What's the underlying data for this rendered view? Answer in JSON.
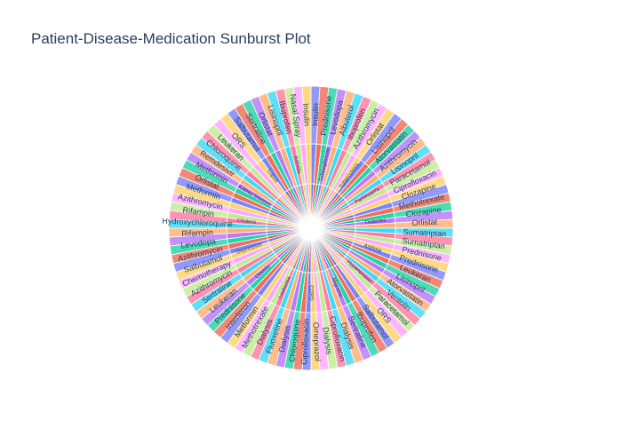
{
  "chart_data": {
    "type": "sunburst",
    "title": "Patient-Disease-Medication Sunburst Plot",
    "levels": [
      "Patient",
      "Disease",
      "Medication"
    ],
    "segment_count": 100,
    "inner_labels_unreadable": true,
    "visible_disease_labels": [
      "Schizophrenia",
      "Tuberculosis",
      "Parkinson's",
      "Diabetes",
      "Asthma",
      "Hypertension",
      "Migraine",
      "COPD",
      "Leukemia",
      "Obesity",
      "Depression",
      "Cholera",
      "Kidney Disease",
      "Lupus",
      "Arthritis"
    ],
    "visible_medication_labels": [
      "Insulin",
      "Prednisone",
      "Levodopa",
      "Albuterol",
      "Ibuprofen",
      "Azithromycin",
      "Orlistat",
      "Lisinopril",
      "Atorvastatin",
      "Azithromycin",
      "Lisinopril",
      "Paracetamol",
      "Ciprofloxacin",
      "Clozapine",
      "Methotrexate",
      "Clozapine",
      "Orlistat",
      "Sumatriptan",
      "Sumatriptan",
      "Prednisone",
      "Prednisone",
      "Leukeran",
      "Lisinopril",
      "Atorvastatin",
      "Ventolin",
      "Paracetamol",
      "ORS",
      "Salbutamol",
      "Ibuprofen",
      "Sertraline",
      "Dialysis",
      "Ciprofloxacin",
      "Dialysis",
      "Omeprazol",
      "Ciprofloxacin",
      "Chloroquine",
      "Dialysis",
      "Fluoxetine",
      "Dialysis",
      "Methotrexate",
      "Metformin",
      "Interferon",
      "Prednisone",
      "Leukeran",
      "Sertraline",
      "Azithromycin",
      "Chemotherapy",
      "Salbutamol",
      "Azithromycin",
      "Levodopa",
      "Rifampin",
      "Hydroxychloroquine",
      "Rifampin",
      "Azithromycin",
      "Metformin",
      "Orlistat",
      "Metformin",
      "Remdesivir",
      "Chloroquine",
      "Leukeran",
      "ORS",
      "Salbutamol",
      "Sertraline",
      "Orlistat",
      "Lisinopril",
      "Ibuprofen",
      "Nasal Spray",
      "Insulin"
    ],
    "colors": [
      "#636efa",
      "#EF553B",
      "#00cc96",
      "#ab63fa",
      "#FFA15A",
      "#19d3f3",
      "#FF6692",
      "#B6E880",
      "#FF97FF",
      "#FECB52"
    ]
  }
}
